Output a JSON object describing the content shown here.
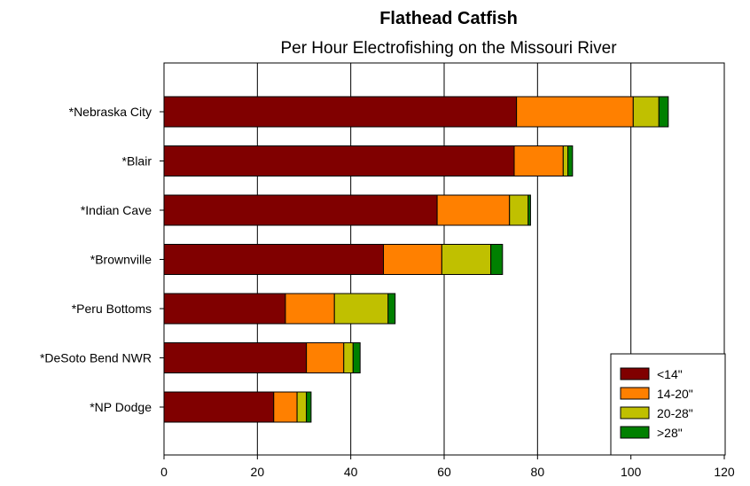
{
  "chart_data": {
    "type": "bar",
    "orientation": "horizontal",
    "stacked": true,
    "title": "Flathead Catfish",
    "subtitle": "Per Hour Electrofishing on the Missouri River",
    "categories": [
      "*Nebraska City",
      "*Blair",
      "*Indian Cave",
      "*Brownville",
      "*Peru Bottoms",
      "*DeSoto Bend NWR",
      "*NP Dodge"
    ],
    "series": [
      {
        "name": "<14\"",
        "color": "#800000",
        "values": [
          75.5,
          75,
          58.5,
          47,
          26,
          30.5,
          23.5
        ]
      },
      {
        "name": "14-20\"",
        "color": "#ff8000",
        "values": [
          25,
          10.5,
          15.5,
          12.5,
          10.5,
          8,
          5
        ]
      },
      {
        "name": "20-28\"",
        "color": "#c0c000",
        "values": [
          5.5,
          1,
          4,
          10.5,
          11.5,
          2,
          2
        ]
      },
      {
        "name": ">28\"",
        "color": "#008000",
        "values": [
          2,
          1,
          0.5,
          2.5,
          1.5,
          1.5,
          1
        ]
      }
    ],
    "xlim": [
      0,
      120
    ],
    "xticks": [
      0,
      20,
      40,
      60,
      80,
      100,
      120
    ],
    "grid": true,
    "legend_position": "bottom-right"
  }
}
